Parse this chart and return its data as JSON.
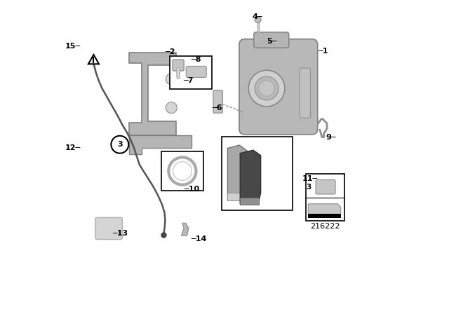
{
  "bg_color": "#ffffff",
  "diagram_number": "216222",
  "part_colors": {
    "caliper": "#b8b8b8",
    "carrier": "#b5b5b5",
    "pad_light": "#a8a8a8",
    "pad_dark": "#484848",
    "wire": "#555555",
    "ring_edge": "#aaaaaa",
    "clip": "#909090",
    "grease": "#d5d5d5"
  },
  "callouts": {
    "1": [
      0.8,
      0.84,
      "left"
    ],
    "2": [
      0.31,
      0.838,
      "left"
    ],
    "4": [
      0.622,
      0.95,
      "right"
    ],
    "5": [
      0.668,
      0.87,
      "right"
    ],
    "6": [
      0.46,
      0.658,
      "left"
    ],
    "7": [
      0.368,
      0.745,
      "left"
    ],
    "8": [
      0.392,
      0.812,
      "left"
    ],
    "9": [
      0.858,
      0.562,
      "right"
    ],
    "10": [
      0.37,
      0.396,
      "left"
    ],
    "11": [
      0.798,
      0.43,
      "right"
    ],
    "12": [
      0.04,
      0.53,
      "right"
    ],
    "13": [
      0.14,
      0.255,
      "left"
    ],
    "14": [
      0.392,
      0.238,
      "left"
    ],
    "15": [
      0.04,
      0.855,
      "right"
    ]
  }
}
